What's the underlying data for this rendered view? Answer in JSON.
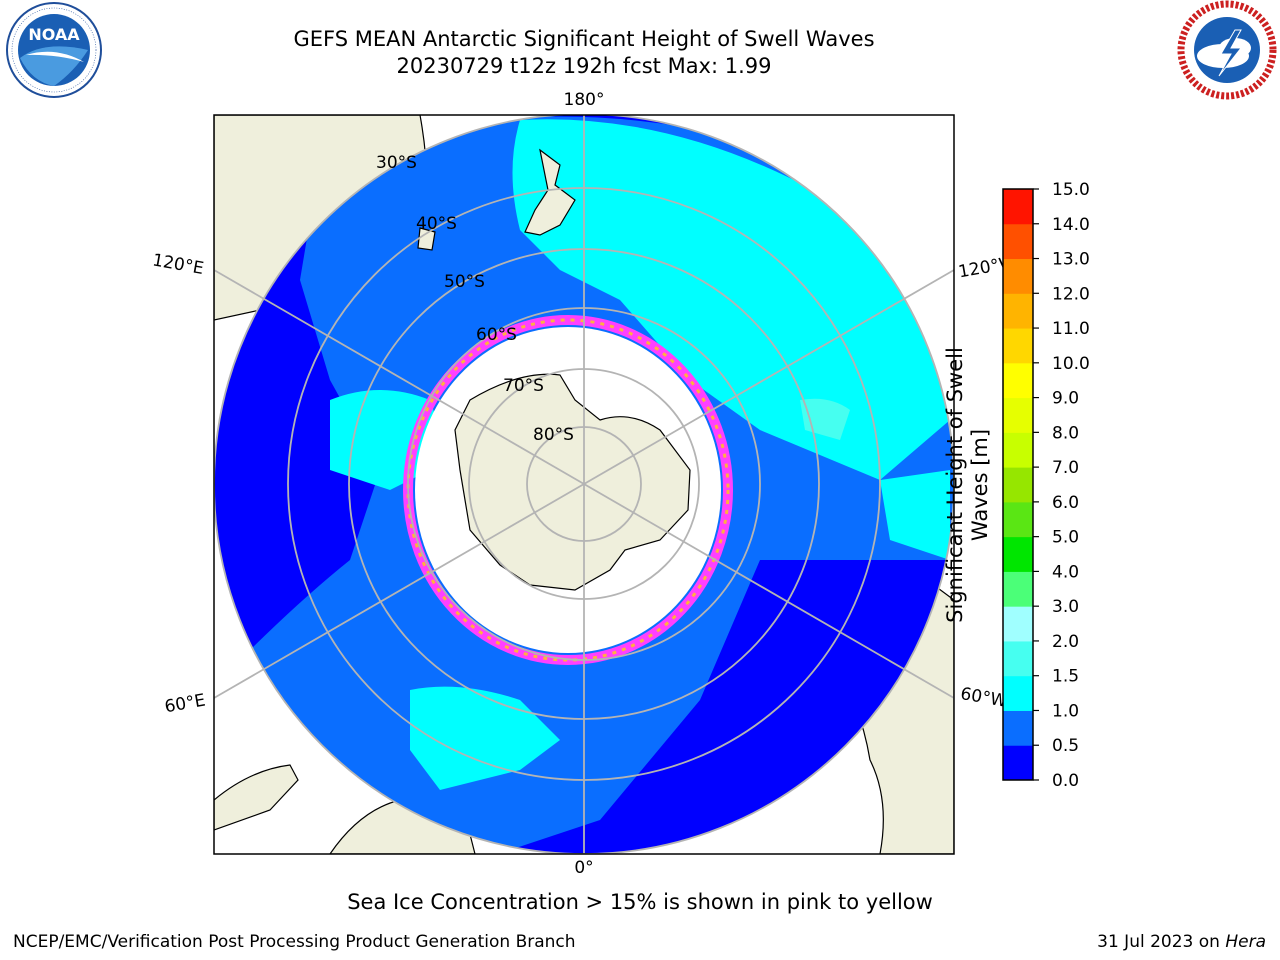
{
  "header": {
    "title_line1": "GEFS MEAN Antarctic Significant Height of Swell Waves",
    "title_line2": "20230729 t12z 192h fcst   Max: 1.99"
  },
  "logos": {
    "left": {
      "text": "NOAA",
      "ring_text": "NATIONAL OCEANIC AND ATMOSPHERIC ADMINISTRATION · U.S. DEPARTMENT OF COMMERCE"
    },
    "right": {
      "ring_text": "NATIONAL WEATHER SERVICE"
    }
  },
  "map": {
    "longitude_labels": {
      "top": "180°",
      "bottom": "0°",
      "upper_left": "120°E",
      "upper_right": "120°W",
      "lower_left": "60°E",
      "lower_right": "60°W"
    },
    "latitude_labels": [
      "30°S",
      "40°S",
      "50°S",
      "60°S",
      "70°S",
      "80°S"
    ]
  },
  "colorbar": {
    "label": "Significant Height of Swell Waves [m]",
    "ticks": [
      "0.0",
      "0.5",
      "1.0",
      "1.5",
      "2.0",
      "3.0",
      "4.0",
      "5.0",
      "6.0",
      "7.0",
      "8.0",
      "9.0",
      "10.0",
      "11.0",
      "12.0",
      "13.0",
      "14.0",
      "15.0"
    ],
    "colors": [
      "#0000ff",
      "#0a6eff",
      "#00ffff",
      "#46fff0",
      "#a0ffff",
      "#4bff78",
      "#00e600",
      "#5ae614",
      "#96e600",
      "#c8ff00",
      "#e6ff00",
      "#ffff00",
      "#ffd700",
      "#ffb400",
      "#ff8c00",
      "#ff5000",
      "#ff1400"
    ]
  },
  "caption": "Sea Ice Concentration > 15% is shown in pink to yellow",
  "footer": {
    "left": "NCEP/EMC/Verification Post Processing Product Generation Branch",
    "right_date": "31 Jul 2023 on ",
    "right_host": "Hera"
  }
}
